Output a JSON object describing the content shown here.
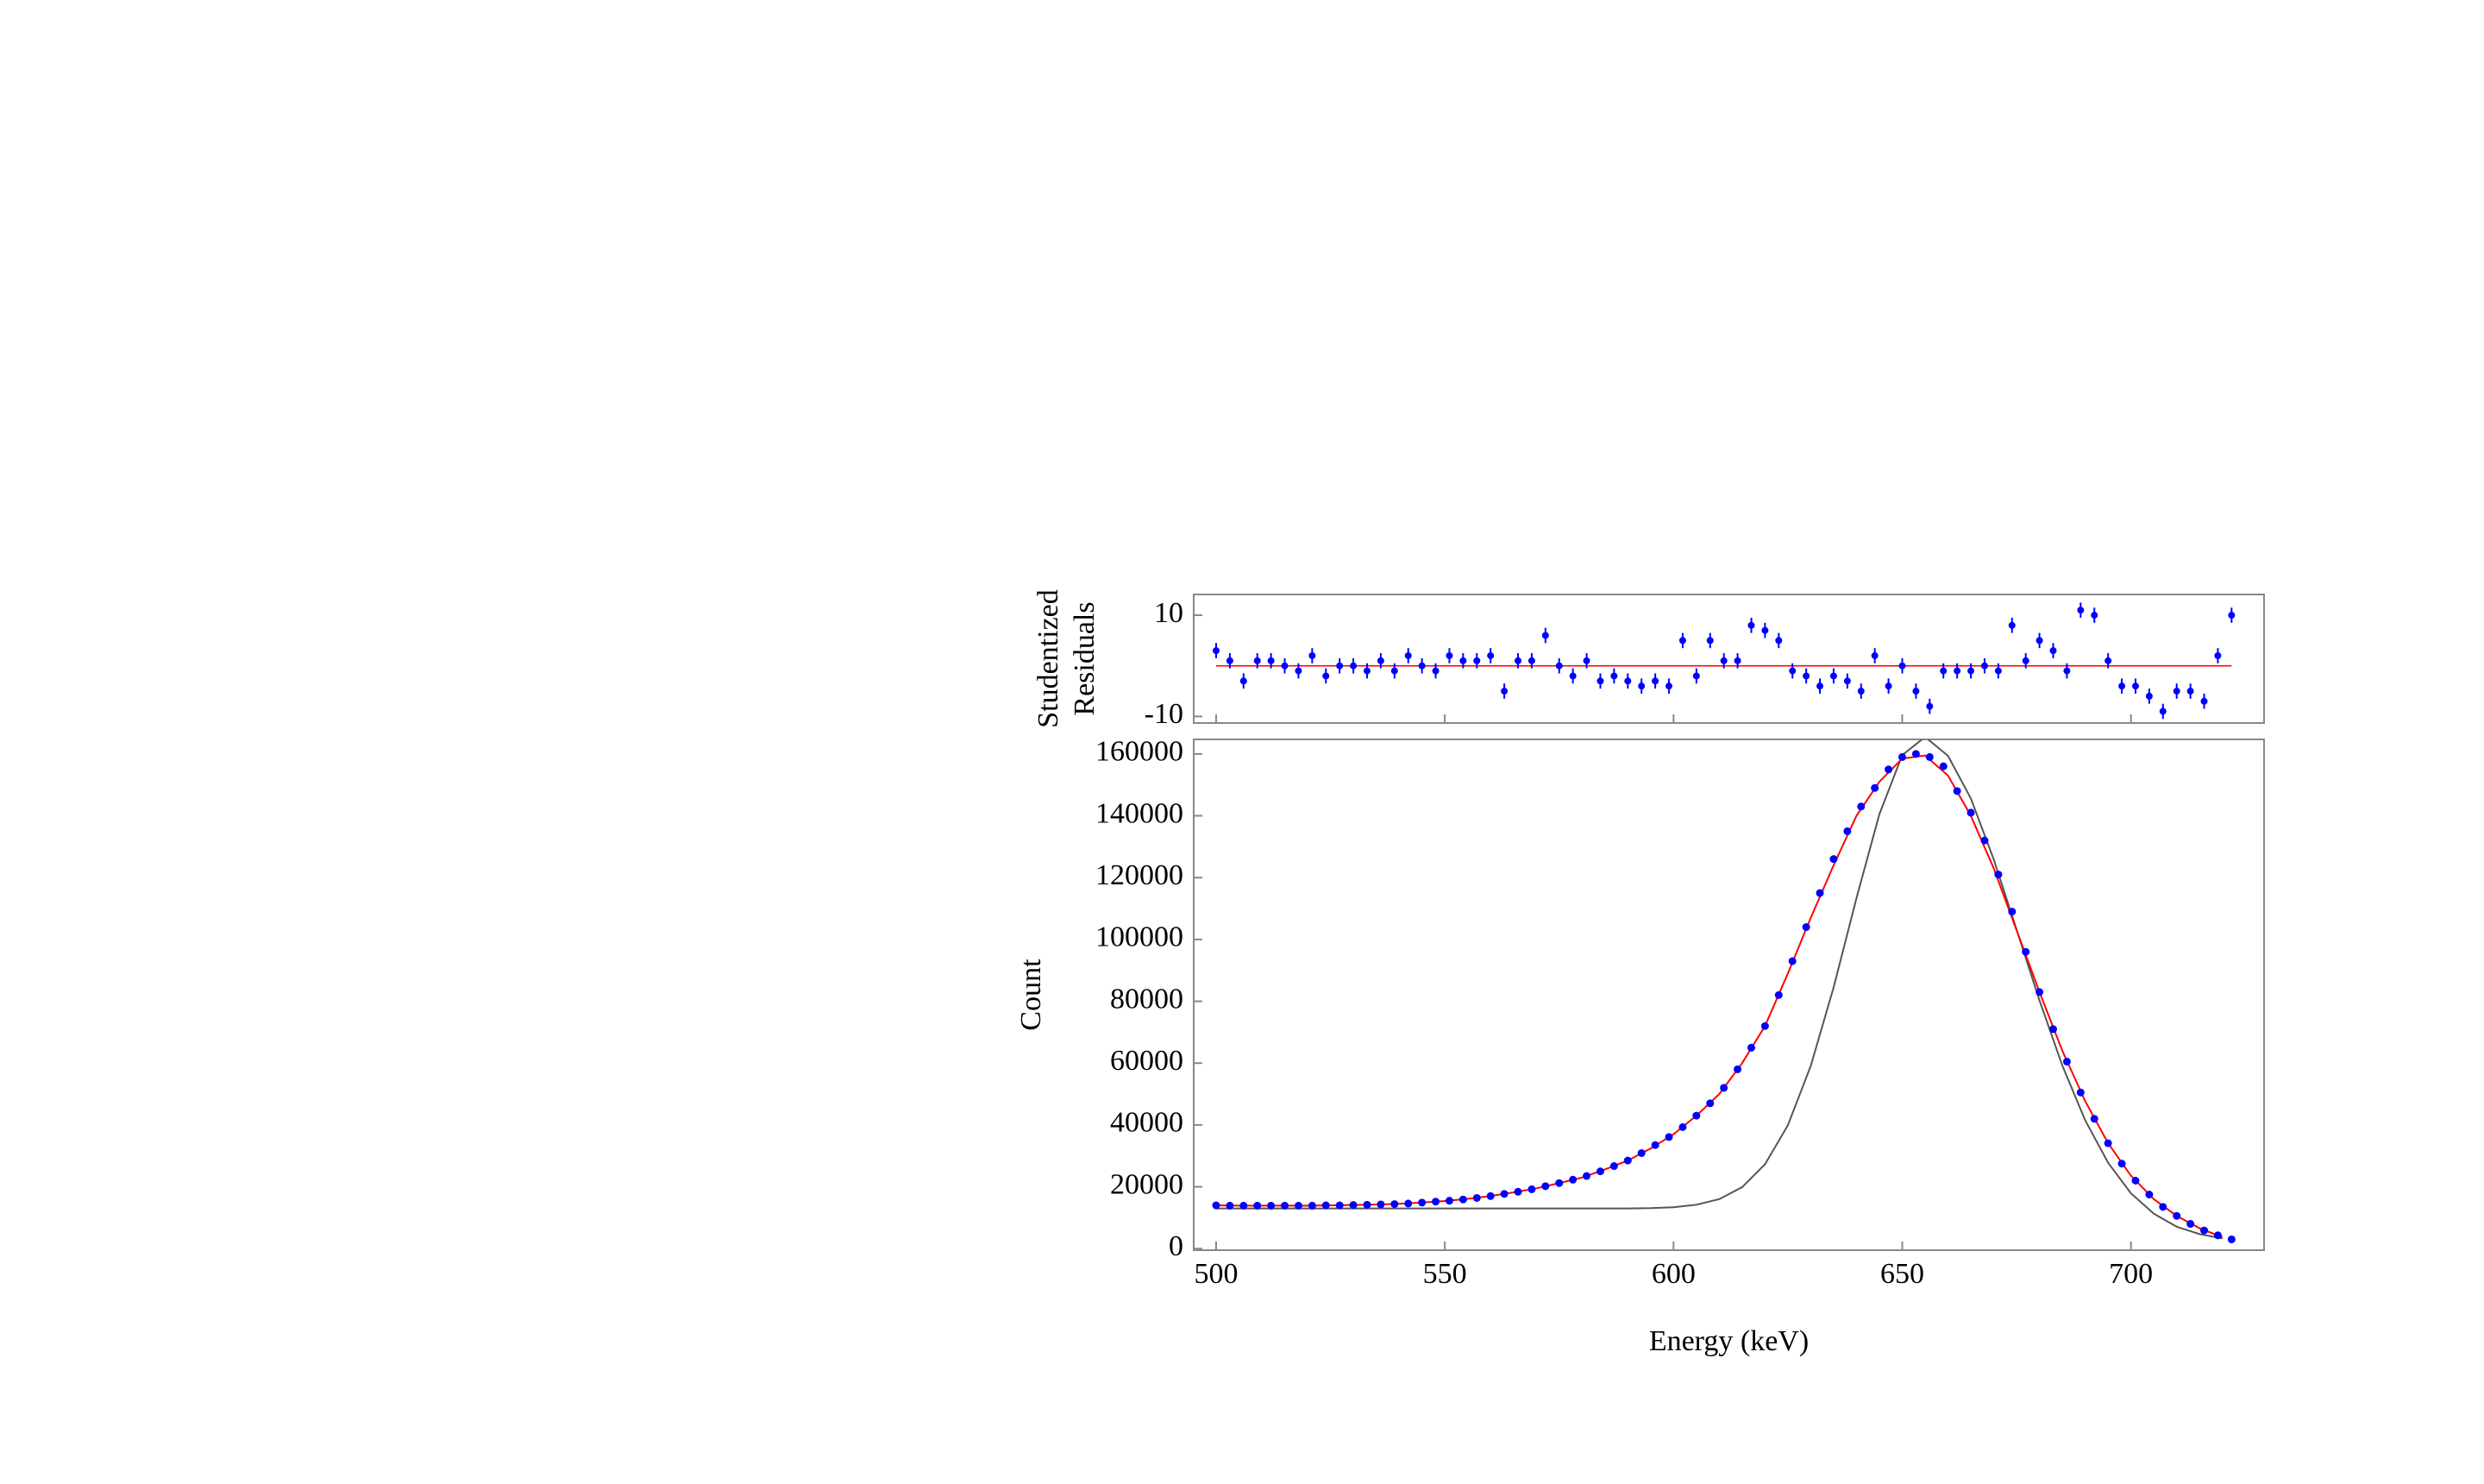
{
  "chart_data": [
    {
      "type": "residuals",
      "ylabel": [
        "Studentized",
        "Residuals"
      ],
      "x": [
        500,
        503,
        506,
        509,
        512,
        515,
        518,
        521,
        524,
        527,
        530,
        533,
        536,
        539,
        542,
        545,
        548,
        551,
        554,
        557,
        560,
        563,
        566,
        569,
        572,
        575,
        578,
        581,
        584,
        587,
        590,
        593,
        596,
        599,
        602,
        605,
        608,
        611,
        614,
        617,
        620,
        623,
        626,
        629,
        632,
        635,
        638,
        641,
        644,
        647,
        650,
        653,
        656,
        659,
        662,
        665,
        668,
        671,
        674,
        677,
        680,
        683,
        686,
        689,
        692,
        695,
        698,
        701,
        704,
        707,
        710,
        713,
        716,
        719,
        722
      ],
      "values": [
        3,
        1,
        -3,
        1,
        1,
        0,
        -1,
        2,
        -2,
        0,
        0,
        -1,
        1,
        -1,
        2,
        0,
        -1,
        2,
        1,
        1,
        2,
        -5,
        1,
        1,
        6,
        0,
        -2,
        1,
        -3,
        -2,
        -3,
        -4,
        -3,
        -4,
        5,
        -2,
        5,
        1,
        1,
        8,
        7,
        5,
        -1,
        -2,
        -4,
        -2,
        -3,
        -5,
        2,
        -4,
        0,
        -5,
        -8,
        -1,
        -1,
        -1,
        0,
        -1,
        8,
        1,
        5,
        3,
        -1,
        11,
        10,
        1,
        -4,
        -4,
        -6,
        -9,
        -5,
        -5,
        -7,
        2,
        10
      ],
      "error": 1.5,
      "color": "#0000ff",
      "reference": {
        "value": 0,
        "color": "#ff0000"
      },
      "xlim": [
        495.1,
        729.1
      ],
      "xticks": [
        500,
        550,
        600,
        650,
        700
      ],
      "ylim": [
        -11.3,
        14.1
      ],
      "yticks": [
        -10,
        10
      ]
    },
    {
      "type": "scatter-fit",
      "xlabel": "Energy (keV)",
      "ylabel": "Count",
      "xlim": [
        495.1,
        729.1
      ],
      "xticks": [
        500,
        550,
        600,
        650,
        700
      ],
      "ylim": [
        -500,
        164700
      ],
      "yticks": [
        0,
        20000,
        40000,
        60000,
        80000,
        100000,
        120000,
        140000,
        160000
      ],
      "series": [
        {
          "style": "line",
          "color": "#555555",
          "x": [
            500,
            505,
            510,
            515,
            520,
            525,
            530,
            535,
            540,
            545,
            550,
            555,
            560,
            565,
            570,
            575,
            580,
            585,
            590,
            595,
            600,
            605,
            610,
            615,
            620,
            625,
            630,
            635,
            640,
            645,
            650,
            655,
            660,
            665,
            670,
            675,
            680,
            685,
            690,
            695,
            700,
            705,
            710,
            715,
            720
          ],
          "values": [
            13000,
            13000,
            13000,
            13000,
            13000,
            13000,
            13000,
            13000,
            13000,
            13000,
            13000,
            13000,
            13000,
            13000,
            13000,
            13000,
            13000,
            13000,
            13000,
            13100,
            13400,
            14200,
            16000,
            19900,
            27300,
            39900,
            59100,
            84500,
            113400,
            140500,
            159600,
            165500,
            159400,
            145600,
            125900,
            103200,
            80300,
            59200,
            41500,
            27800,
            17900,
            11300,
            7100,
            4700,
            3300
          ]
        },
        {
          "style": "line",
          "color": "#ff0000",
          "x": [
            500,
            505,
            510,
            515,
            520,
            525,
            530,
            535,
            540,
            545,
            550,
            555,
            560,
            565,
            570,
            575,
            580,
            585,
            590,
            595,
            600,
            605,
            610,
            615,
            620,
            625,
            630,
            635,
            640,
            645,
            650,
            655,
            660,
            665,
            670,
            675,
            680,
            685,
            690,
            695,
            700,
            705,
            710,
            715,
            720
          ],
          "values": [
            14000,
            13900,
            13900,
            13900,
            13900,
            14000,
            14100,
            14250,
            14500,
            14900,
            15400,
            16100,
            17000,
            18200,
            19500,
            21200,
            23000,
            25600,
            28500,
            32400,
            37000,
            43000,
            50000,
            60000,
            72000,
            89000,
            107000,
            124000,
            140000,
            151000,
            158500,
            159500,
            153000,
            140000,
            123000,
            103000,
            83000,
            64000,
            47700,
            34100,
            23600,
            16000,
            10600,
            6600,
            3700
          ]
        },
        {
          "style": "points",
          "color": "#0000ff",
          "x": [
            500,
            503,
            506,
            509,
            512,
            515,
            518,
            521,
            524,
            527,
            530,
            533,
            536,
            539,
            542,
            545,
            548,
            551,
            554,
            557,
            560,
            563,
            566,
            569,
            572,
            575,
            578,
            581,
            584,
            587,
            590,
            593,
            596,
            599,
            602,
            605,
            608,
            611,
            614,
            617,
            620,
            623,
            626,
            629,
            632,
            635,
            638,
            641,
            644,
            647,
            650,
            653,
            656,
            659,
            662,
            665,
            668,
            671,
            674,
            677,
            680,
            683,
            686,
            689,
            692,
            695,
            698,
            701,
            704,
            707,
            710,
            713,
            716,
            719,
            722
          ],
          "values": [
            14000,
            13900,
            13900,
            13900,
            13900,
            13900,
            13900,
            13900,
            14000,
            14000,
            14100,
            14200,
            14300,
            14400,
            14600,
            14900,
            15200,
            15500,
            15900,
            16400,
            17000,
            17700,
            18400,
            19200,
            20200,
            21200,
            22300,
            23500,
            25000,
            26700,
            28500,
            30900,
            33500,
            36100,
            39300,
            43000,
            47000,
            52000,
            58000,
            65000,
            72000,
            82000,
            93000,
            104000,
            115000,
            126000,
            135000,
            143000,
            149000,
            155000,
            159000,
            160000,
            159000,
            156000,
            148000,
            141000,
            132000,
            121000,
            109000,
            96000,
            83000,
            71000,
            60500,
            50500,
            42000,
            34100,
            27500,
            22000,
            17500,
            13500,
            10600,
            8000,
            5900,
            4300,
            3000
          ]
        }
      ]
    }
  ]
}
